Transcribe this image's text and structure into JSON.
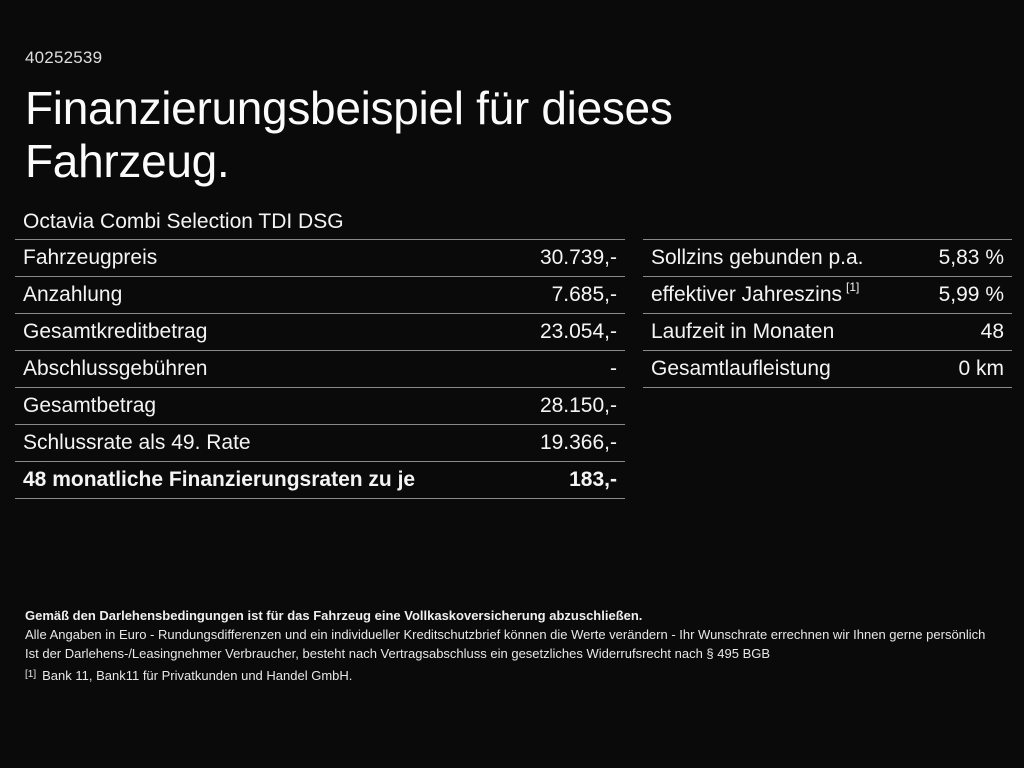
{
  "page": {
    "id_number": "40252539",
    "title": "Finanzierungsbeispiel für dieses Fahrzeug.",
    "vehicle_model": "Octavia Combi Selection TDI DSG"
  },
  "left_table": {
    "rows": [
      {
        "label": "Fahrzeugpreis",
        "value": "30.739,-"
      },
      {
        "label": "Anzahlung",
        "value": "7.685,-"
      },
      {
        "label": "Gesamtkreditbetrag",
        "value": "23.054,-"
      },
      {
        "label": "Abschlussgebühren",
        "value": "-"
      },
      {
        "label": "Gesamtbetrag",
        "value": "28.150,-"
      },
      {
        "label": "Schlussrate als 49. Rate",
        "value": "19.366,-"
      },
      {
        "label": "48 monatliche Finanzierungsraten zu je",
        "value": "183,-",
        "bold": true
      }
    ]
  },
  "right_table": {
    "rows": [
      {
        "label": "Sollzins gebunden p.a.",
        "value": "5,83 %"
      },
      {
        "label": "effektiver Jahreszins",
        "label_sup": "[1]",
        "value": "5,99 %"
      },
      {
        "label": "Laufzeit in Monaten",
        "value": "48"
      },
      {
        "label": "Gesamtlaufleistung",
        "value": "0 km"
      }
    ]
  },
  "footer": {
    "insurance_note": "Gemäß den Darlehensbedingungen ist für das Fahrzeug eine Vollkaskoversicherung abzuschließen.",
    "disclaimer_line1": "Alle Angaben in Euro - Rundungsdifferenzen und ein individueller Kreditschutzbrief können die Werte verändern - Ihr Wunschrate errechnen wir Ihnen gerne persönlich",
    "disclaimer_line2": "Ist der Darlehens-/Leasingnehmer Verbraucher, besteht nach Vertragsabschluss ein gesetzliches Widerrufsrecht nach § 495 BGB",
    "footnote_marker": "[1]",
    "footnote_text": "Bank 11, Bank11 für Privatkunden und Handel GmbH."
  },
  "colors": {
    "background": "#0a0a0a",
    "text": "#f2f2f2",
    "divider": "#8a8a8a"
  }
}
